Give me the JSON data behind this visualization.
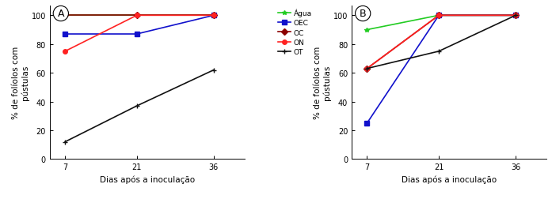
{
  "x": [
    7,
    21,
    36
  ],
  "panel_A": {
    "Água": [
      100,
      100,
      100
    ],
    "OEC": [
      87,
      87,
      100
    ],
    "OC": [
      100,
      100,
      100
    ],
    "ON": [
      75,
      100,
      100
    ],
    "OT": [
      12,
      37,
      62
    ]
  },
  "panel_B": {
    "Água": [
      90,
      100,
      100
    ],
    "OEC": [
      25,
      100,
      100
    ],
    "OC": [
      63,
      100,
      100
    ],
    "ON": [
      63,
      100,
      100
    ],
    "OT": [
      63,
      75,
      100
    ]
  },
  "colors": {
    "Água": "#22cc22",
    "OEC": "#1111cc",
    "OC": "#8B0000",
    "ON": "#ff2222",
    "OT": "#111111"
  },
  "markers": {
    "Água": "*",
    "OEC": "s",
    "OC": "D",
    "ON": "o",
    "OT": "+"
  },
  "ylabel": "% de folíolos com\npústulas",
  "xlabel": "Dias após a inoculação",
  "ylim": [
    0,
    107
  ],
  "yticks": [
    0,
    20,
    40,
    60,
    80,
    100
  ],
  "xticks": [
    7,
    21,
    36
  ],
  "label_A": "A",
  "label_B": "B",
  "legend_labels": [
    "Água",
    "OEC",
    "OC",
    "ON",
    "OT"
  ],
  "background_color": "#ffffff",
  "linewidth": 1.2,
  "markersize": 4
}
